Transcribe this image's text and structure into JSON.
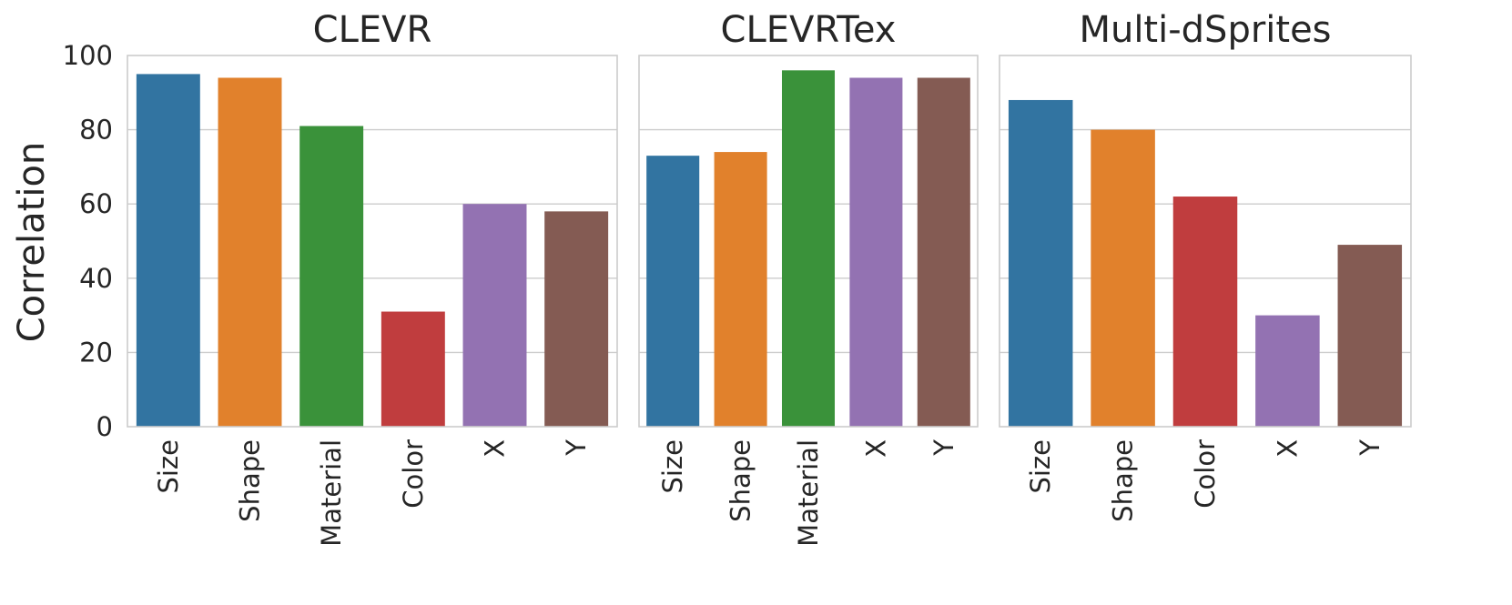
{
  "chart_data": [
    {
      "type": "bar",
      "title": "CLEVR",
      "ylabel": "Correlation",
      "ylim": [
        0,
        100
      ],
      "yticks": [
        0,
        20,
        40,
        60,
        80,
        100
      ],
      "grid": true,
      "categories": [
        "Size",
        "Shape",
        "Material",
        "Color",
        "X",
        "Y"
      ],
      "values": [
        95,
        94,
        81,
        31,
        60,
        58
      ],
      "colors": [
        "#3274a1",
        "#e1812c",
        "#3a923a",
        "#c03d3e",
        "#9372b2",
        "#845b53"
      ]
    },
    {
      "type": "bar",
      "title": "CLEVRTex",
      "ylabel": "",
      "ylim": [
        0,
        100
      ],
      "grid": true,
      "categories": [
        "Size",
        "Shape",
        "Material",
        "X",
        "Y"
      ],
      "values": [
        73,
        74,
        96,
        94,
        94
      ],
      "colors": [
        "#3274a1",
        "#e1812c",
        "#3a923a",
        "#9372b2",
        "#845b53"
      ]
    },
    {
      "type": "bar",
      "title": "Multi-dSprites",
      "ylabel": "",
      "ylim": [
        0,
        100
      ],
      "grid": true,
      "categories": [
        "Size",
        "Shape",
        "Color",
        "X",
        "Y"
      ],
      "values": [
        88,
        80,
        62,
        30,
        49
      ],
      "colors": [
        "#3274a1",
        "#e1812c",
        "#c03d3e",
        "#9372b2",
        "#845b53"
      ]
    }
  ]
}
